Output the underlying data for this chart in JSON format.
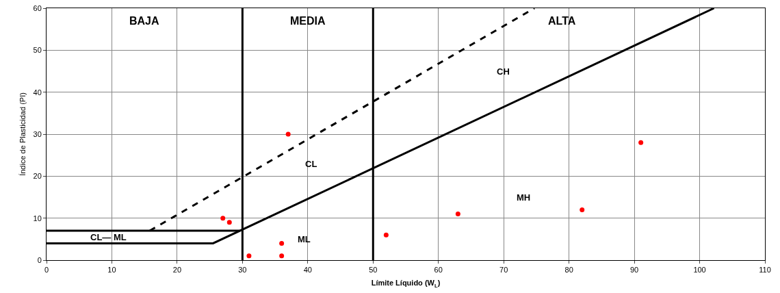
{
  "chart_data": {
    "type": "scatter",
    "xlabel": "Límite Líquido (W$_{L}$)",
    "ylabel": "Índice de Plasticidad (PI)",
    "series": [
      {
        "color": "#ff0000",
        "marker": "circle",
        "x": [
          27,
          28,
          37,
          31,
          36,
          36,
          52,
          63,
          82,
          91
        ],
        "values": [
          10,
          9,
          30,
          1,
          4,
          1,
          6,
          11,
          12,
          28
        ]
      },
      {
        "type": "line",
        "color": "#000000",
        "marker": "none",
        "line_style": "solid",
        "x": [
          0,
          25.5,
          102.2
        ],
        "values": [
          4,
          4,
          60
        ]
      },
      {
        "type": "line",
        "color": "#000000",
        "marker": "none",
        "line_style": "solid",
        "x": [
          0,
          29.6
        ],
        "values": [
          7,
          7
        ]
      },
      {
        "type": "line",
        "color": "#000000",
        "marker": "none",
        "line_style": "dashed",
        "x": [
          15.8,
          74.7
        ],
        "values": [
          7,
          60
        ]
      }
    ],
    "ref_lines": [
      {
        "axis": "x",
        "value": 30,
        "color": "#000000"
      },
      {
        "axis": "x",
        "value": 50,
        "color": "#000000"
      }
    ],
    "annotations": [
      "BAJA",
      "MEDIA",
      "ALTA",
      "CH",
      "CL",
      "MH",
      "ML",
      "CL— ML"
    ],
    "xlim": [
      0,
      110
    ],
    "xticks": [
      0,
      10,
      20,
      30,
      40,
      50,
      60,
      70,
      80,
      90,
      100,
      110
    ],
    "ylim": [
      0,
      60
    ],
    "yticks": [
      0,
      10,
      20,
      30,
      40,
      50,
      60
    ],
    "grid": true
  }
}
